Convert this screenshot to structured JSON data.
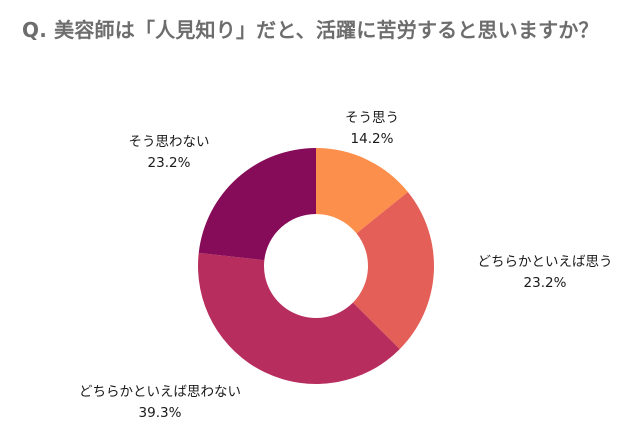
{
  "title": "Q. 美容師は「人見知り」だと、活躍に苦労すると思いますか？",
  "chart_data": {
    "type": "pie",
    "variant": "donut",
    "title": "Q. 美容師は「人見知り」だと、活躍に苦労すると思いますか？",
    "unit": "%",
    "slices": [
      {
        "label": "そう思う",
        "value": 14.2,
        "display": "14.2%",
        "color": "#fc8f4b"
      },
      {
        "label": "どちらかといえば思う",
        "value": 23.2,
        "display": "23.2%",
        "color": "#e45f58"
      },
      {
        "label": "どちらかといえば思わない",
        "value": 39.3,
        "display": "39.3%",
        "color": "#b72d5d"
      },
      {
        "label": "そう思わない",
        "value": 23.2,
        "display": "23.2%",
        "color": "#860b58"
      }
    ],
    "legend": "none",
    "grid": false
  }
}
